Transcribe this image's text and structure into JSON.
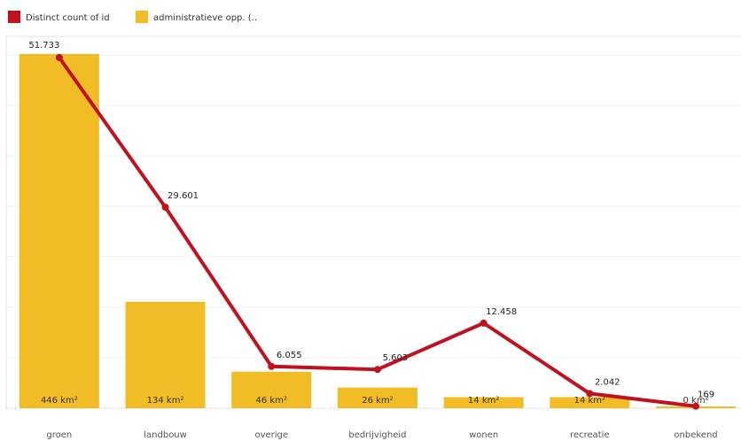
{
  "chart_data": {
    "type": "bar+line",
    "categories": [
      "groen",
      "landbouw",
      "overige",
      "bedrijvigheid",
      "wonen",
      "recreatie",
      "onbekend"
    ],
    "series": [
      {
        "name": "Distinct count of id",
        "type": "line",
        "values": [
          51733,
          29601,
          6055,
          5603,
          12458,
          2042,
          169
        ],
        "labels": [
          "51.733",
          "29.601",
          "6.055",
          "5.603",
          "12.458",
          "2.042",
          "169"
        ],
        "color": "#C0111F"
      },
      {
        "name": "administratieve opp. (..",
        "type": "bar",
        "values": [
          446,
          134,
          46,
          26,
          14,
          14,
          0
        ],
        "labels": [
          "446 km²",
          "134 km²",
          "46 km²",
          "26 km²",
          "14 km²",
          "14 km²",
          "0 km²"
        ],
        "color": "#F2BC27"
      }
    ],
    "bar_ylim": [
      0,
      446
    ],
    "line_ylim": [
      0,
      51733
    ],
    "legend_position": "top-left",
    "grid": true,
    "title": "",
    "xlabel": "",
    "ylabel": ""
  }
}
